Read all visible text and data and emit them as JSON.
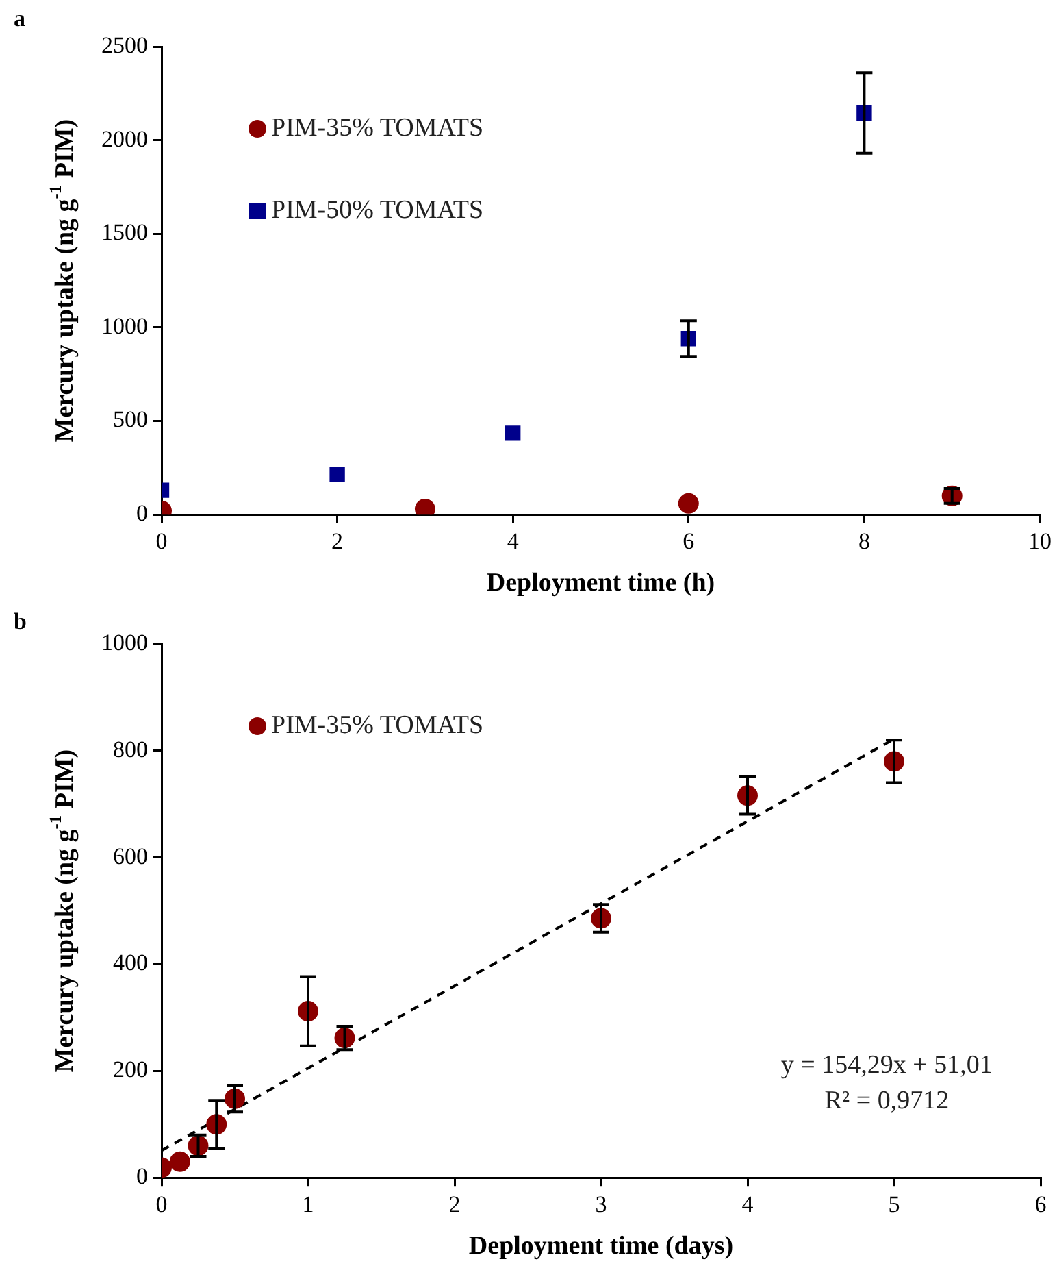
{
  "chart_data": [
    {
      "type": "scatter",
      "annotations": [
        "a"
      ],
      "xlabel": "Deployment time (h)",
      "ylabel": "Mercury uptake (ng g$^{-1}$ PIM)",
      "xlim": [
        0,
        10
      ],
      "xticks": [
        0,
        2,
        4,
        6,
        8,
        10
      ],
      "ylim": [
        0,
        2500
      ],
      "yticks": [
        0,
        500,
        1000,
        1500,
        2000,
        2500
      ],
      "grid": false,
      "legend": "top left",
      "series": [
        {
          "name": "PIM-35% TOMATS",
          "color": "#8b0000",
          "marker": "circle",
          "x": [
            0,
            3,
            6,
            9
          ],
          "values": [
            20,
            30,
            60,
            100
          ],
          "errors": [
            null,
            null,
            null,
            40
          ]
        },
        {
          "name": "PIM-50% TOMATS",
          "color": "#00008b",
          "marker": "square",
          "x": [
            0,
            2,
            4,
            6,
            8
          ],
          "values": [
            130,
            215,
            435,
            940,
            2145
          ],
          "errors": [
            null,
            null,
            null,
            95,
            215
          ]
        }
      ]
    },
    {
      "type": "scatter",
      "annotations": [
        "b",
        "y = 154,29x + 51,01",
        "R² = 0,9712"
      ],
      "xlabel": "Deployment time (days)",
      "ylabel": "Mercury uptake (ng g$^{-1}$ PIM)",
      "xlim": [
        0,
        6
      ],
      "xticks": [
        0,
        1,
        2,
        3,
        4,
        5,
        6
      ],
      "ylim": [
        0,
        1000
      ],
      "yticks": [
        0,
        200,
        400,
        600,
        800,
        1000
      ],
      "grid": false,
      "legend": "top left",
      "series": [
        {
          "name": "PIM-35% TOMATS",
          "color": "#8b0000",
          "marker": "circle",
          "x": [
            0,
            0.125,
            0.25,
            0.375,
            0.5,
            1,
            1.25,
            3,
            4,
            5
          ],
          "values": [
            19,
            30,
            60,
            100,
            148,
            312,
            262,
            486,
            716,
            780
          ],
          "errors": [
            null,
            null,
            20,
            45,
            25,
            65,
            22,
            26,
            35,
            40
          ]
        },
        {
          "type": "line",
          "color": "#000000",
          "marker": "none",
          "line_style": "dashed",
          "x": [
            0,
            5
          ],
          "values": [
            51,
            822
          ]
        }
      ]
    }
  ]
}
